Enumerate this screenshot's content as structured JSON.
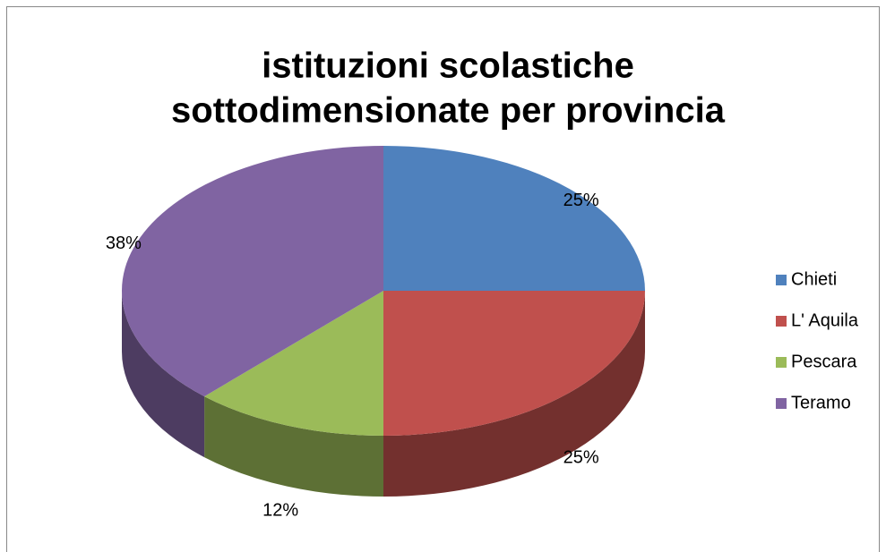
{
  "chart_data": {
    "type": "pie",
    "title": [
      "istituzioni scolastiche",
      "sottodimensionate per provincia"
    ],
    "categories": [
      "Chieti",
      "L' Aquila",
      "Pescara",
      "Teramo"
    ],
    "values": [
      25,
      25,
      12,
      38
    ],
    "value_labels": [
      "25%",
      "25%",
      "12%",
      "38%"
    ],
    "colors": [
      "#4f81bd",
      "#c0504d",
      "#9bbb59",
      "#8064a2"
    ],
    "legend": "right"
  }
}
